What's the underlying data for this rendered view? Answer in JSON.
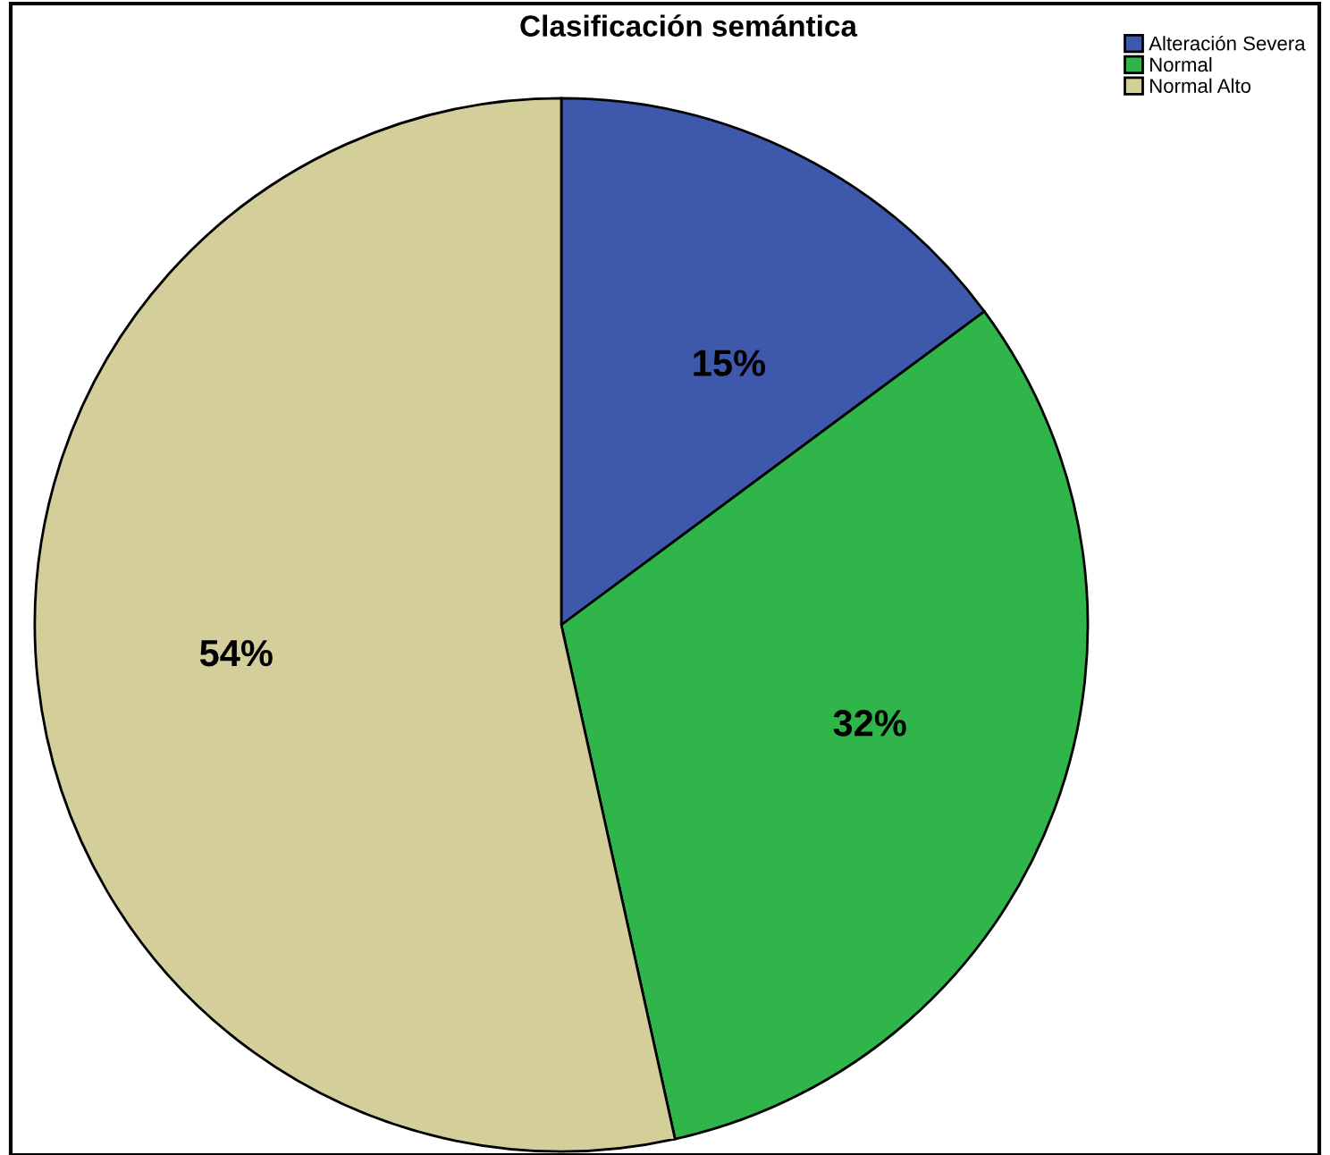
{
  "chart_data": {
    "type": "pie",
    "title": "Clasificación semántica",
    "categories": [
      "Alteración Severa",
      "Normal",
      "Normal Alto"
    ],
    "values": [
      15,
      32,
      54
    ],
    "value_labels": [
      "15%",
      "32%",
      "54%"
    ],
    "colors": [
      "#3e58ac",
      "#2fb54a",
      "#d3ce9a"
    ],
    "legend": "top right"
  }
}
